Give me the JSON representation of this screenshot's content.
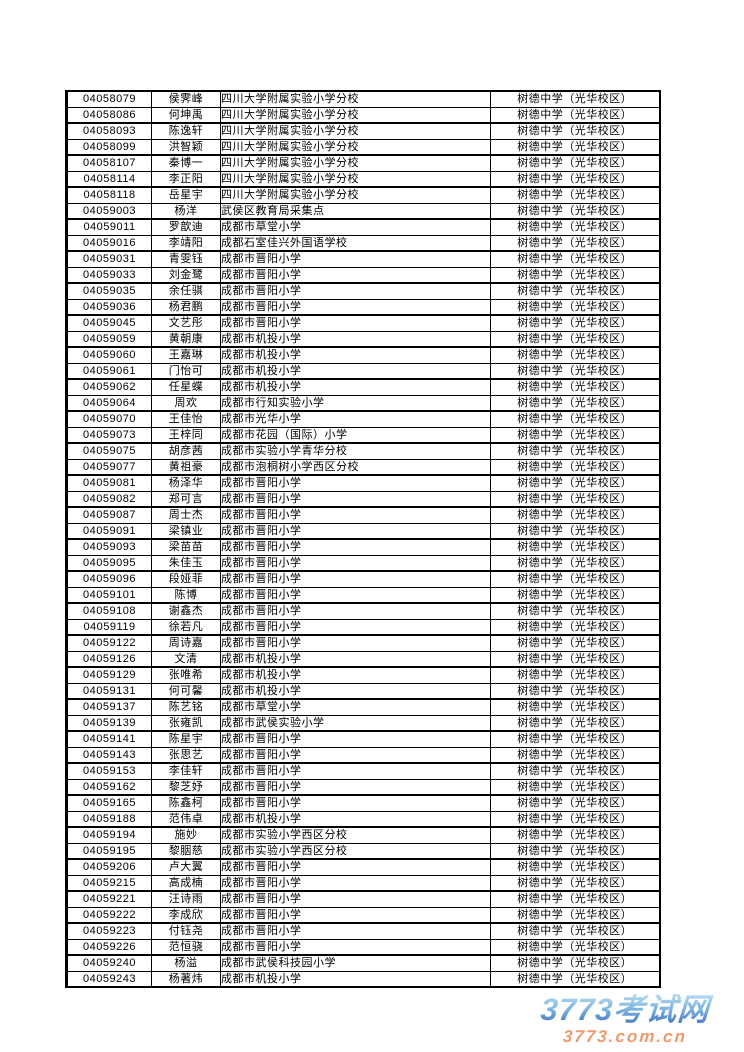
{
  "table": {
    "rows": [
      [
        "04058079",
        "侯霁峰",
        "四川大学附属实验小学分校",
        "树德中学（光华校区）"
      ],
      [
        "04058086",
        "何坤禹",
        "四川大学附属实验小学分校",
        "树德中学（光华校区）"
      ],
      [
        "04058093",
        "陈逸轩",
        "四川大学附属实验小学分校",
        "树德中学（光华校区）"
      ],
      [
        "04058099",
        "洪智颖",
        "四川大学附属实验小学分校",
        "树德中学（光华校区）"
      ],
      [
        "04058107",
        "秦博一",
        "四川大学附属实验小学分校",
        "树德中学（光华校区）"
      ],
      [
        "04058114",
        "李正阳",
        "四川大学附属实验小学分校",
        "树德中学（光华校区）"
      ],
      [
        "04058118",
        "岳星宇",
        "四川大学附属实验小学分校",
        "树德中学（光华校区）"
      ],
      [
        "04059003",
        "杨洋",
        "武侯区教育局采集点",
        "树德中学（光华校区）"
      ],
      [
        "04059011",
        "罗歆迪",
        "成都市草堂小学",
        "树德中学（光华校区）"
      ],
      [
        "04059016",
        "李靖阳",
        "成都石室佳兴外国语学校",
        "树德中学（光华校区）"
      ],
      [
        "04059031",
        "青雯钰",
        "成都市晋阳小学",
        "树德中学（光华校区）"
      ],
      [
        "04059033",
        "刘金鹭",
        "成都市晋阳小学",
        "树德中学（光华校区）"
      ],
      [
        "04059035",
        "余任骐",
        "成都市晋阳小学",
        "树德中学（光华校区）"
      ],
      [
        "04059036",
        "杨君鹏",
        "成都市晋阳小学",
        "树德中学（光华校区）"
      ],
      [
        "04059045",
        "文艺彤",
        "成都市晋阳小学",
        "树德中学（光华校区）"
      ],
      [
        "04059059",
        "黄朝康",
        "成都市机投小学",
        "树德中学（光华校区）"
      ],
      [
        "04059060",
        "王嘉琳",
        "成都市机投小学",
        "树德中学（光华校区）"
      ],
      [
        "04059061",
        "门怡可",
        "成都市机投小学",
        "树德中学（光华校区）"
      ],
      [
        "04059062",
        "任星蝶",
        "成都市机投小学",
        "树德中学（光华校区）"
      ],
      [
        "04059064",
        "周欢",
        "成都市行知实验小学",
        "树德中学（光华校区）"
      ],
      [
        "04059070",
        "王佳怡",
        "成都市光华小学",
        "树德中学（光华校区）"
      ],
      [
        "04059073",
        "王梓同",
        "成都市花园（国际）小学",
        "树德中学（光华校区）"
      ],
      [
        "04059075",
        "胡彦茜",
        "成都市实验小学青华分校",
        "树德中学（光华校区）"
      ],
      [
        "04059077",
        "黄祖豪",
        "成都市泡桐树小学西区分校",
        "树德中学（光华校区）"
      ],
      [
        "04059081",
        "杨泽华",
        "成都市晋阳小学",
        "树德中学（光华校区）"
      ],
      [
        "04059082",
        "郑可言",
        "成都市晋阳小学",
        "树德中学（光华校区）"
      ],
      [
        "04059087",
        "周士杰",
        "成都市晋阳小学",
        "树德中学（光华校区）"
      ],
      [
        "04059091",
        "梁镇业",
        "成都市晋阳小学",
        "树德中学（光华校区）"
      ],
      [
        "04059093",
        "梁苗苗",
        "成都市晋阳小学",
        "树德中学（光华校区）"
      ],
      [
        "04059095",
        "朱佳玉",
        "成都市晋阳小学",
        "树德中学（光华校区）"
      ],
      [
        "04059096",
        "段娅菲",
        "成都市晋阳小学",
        "树德中学（光华校区）"
      ],
      [
        "04059101",
        "陈博",
        "成都市晋阳小学",
        "树德中学（光华校区）"
      ],
      [
        "04059108",
        "谢鑫杰",
        "成都市晋阳小学",
        "树德中学（光华校区）"
      ],
      [
        "04059119",
        "徐若凡",
        "成都市晋阳小学",
        "树德中学（光华校区）"
      ],
      [
        "04059122",
        "周诗嘉",
        "成都市晋阳小学",
        "树德中学（光华校区）"
      ],
      [
        "04059126",
        "文清",
        "成都市机投小学",
        "树德中学（光华校区）"
      ],
      [
        "04059129",
        "张唯希",
        "成都市机投小学",
        "树德中学（光华校区）"
      ],
      [
        "04059131",
        "何可馨",
        "成都市机投小学",
        "树德中学（光华校区）"
      ],
      [
        "04059137",
        "陈艺铭",
        "成都市草堂小学",
        "树德中学（光华校区）"
      ],
      [
        "04059139",
        "张雍凯",
        "成都市武侯实验小学",
        "树德中学（光华校区）"
      ],
      [
        "04059141",
        "陈星宇",
        "成都市晋阳小学",
        "树德中学（光华校区）"
      ],
      [
        "04059143",
        "张思艺",
        "成都市晋阳小学",
        "树德中学（光华校区）"
      ],
      [
        "04059153",
        "李佳轩",
        "成都市晋阳小学",
        "树德中学（光华校区）"
      ],
      [
        "04059162",
        "黎芝妤",
        "成都市晋阳小学",
        "树德中学（光华校区）"
      ],
      [
        "04059165",
        "陈鑫柯",
        "成都市晋阳小学",
        "树德中学（光华校区）"
      ],
      [
        "04059188",
        "范伟卓",
        "成都市机投小学",
        "树德中学（光华校区）"
      ],
      [
        "04059194",
        "施妙",
        "成都市实验小学西区分校",
        "树德中学（光华校区）"
      ],
      [
        "04059195",
        "黎胭慈",
        "成都市实验小学西区分校",
        "树德中学（光华校区）"
      ],
      [
        "04059206",
        "卢大翼",
        "成都市晋阳小学",
        "树德中学（光华校区）"
      ],
      [
        "04059215",
        "高成楠",
        "成都市晋阳小学",
        "树德中学（光华校区）"
      ],
      [
        "04059221",
        "汪诗雨",
        "成都市晋阳小学",
        "树德中学（光华校区）"
      ],
      [
        "04059222",
        "李成欣",
        "成都市晋阳小学",
        "树德中学（光华校区）"
      ],
      [
        "04059223",
        "付钰尧",
        "成都市晋阳小学",
        "树德中学（光华校区）"
      ],
      [
        "04059226",
        "范恒骁",
        "成都市晋阳小学",
        "树德中学（光华校区）"
      ],
      [
        "04059240",
        "杨溢",
        "成都市武侯科技园小学",
        "树德中学（光华校区）"
      ],
      [
        "04059243",
        "杨著炜",
        "成都市机投小学",
        "树德中学（光华校区）"
      ]
    ]
  },
  "watermark": {
    "site_name": "3773考试网",
    "site_domain": "3773.com.cn",
    "site_name_color_top": "#b9ddf1",
    "site_name_color_bottom": "#3f6fc0",
    "site_domain_color": "#f0996d"
  }
}
